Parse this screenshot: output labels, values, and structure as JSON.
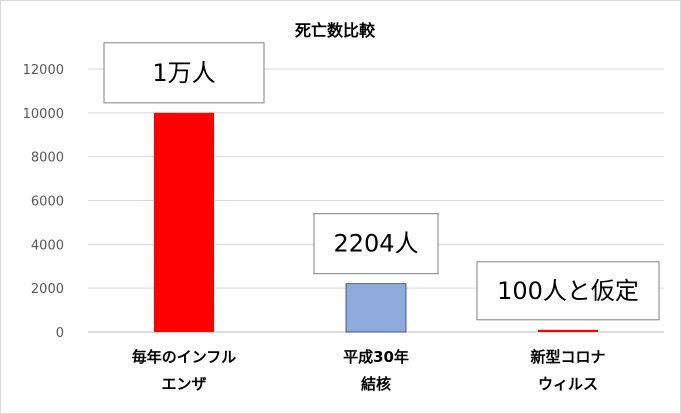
{
  "chart_data": {
    "type": "bar",
    "title": "死亡数比較",
    "categories": [
      [
        "毎年のインフル",
        "エンザ"
      ],
      [
        "平成30年",
        "結核"
      ],
      [
        "新型コロナ",
        "ウィルス"
      ]
    ],
    "values": [
      10000,
      2204,
      100
    ],
    "bar_colors": [
      "#ff0000",
      "#8faadc",
      "#ff0000"
    ],
    "data_labels": [
      "1万人",
      "2204人",
      "100人と仮定"
    ],
    "ylim": [
      0,
      12000
    ],
    "yticks": [
      0,
      2000,
      4000,
      6000,
      8000,
      10000,
      12000
    ],
    "grid": true,
    "legend": "none",
    "xlabel": "",
    "ylabel": ""
  },
  "colors": {
    "gridline": "#d9d9d9",
    "axis": "#bfbfbf",
    "text": "#000000",
    "tick_text": "#595959",
    "label_border": "#808080"
  }
}
